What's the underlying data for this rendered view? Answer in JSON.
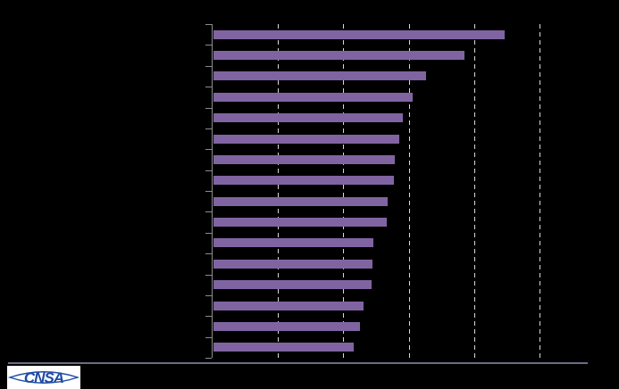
{
  "slide": {
    "background_color": "#000000",
    "visible_text_note": "no chart text labels are rendered in the image"
  },
  "chart_data": {
    "type": "bar",
    "orientation": "horizontal",
    "title": "",
    "categories": [
      "",
      "",
      "",
      "",
      "",
      "",
      "",
      "",
      "",
      "",
      "",
      "",
      "",
      "",
      "",
      ""
    ],
    "category_labels_visible": false,
    "values": [
      4.46,
      3.84,
      3.25,
      3.05,
      2.9,
      2.84,
      2.77,
      2.76,
      2.66,
      2.65,
      2.45,
      2.43,
      2.42,
      2.3,
      2.24,
      2.15
    ],
    "x_axis": {
      "min": 0,
      "max": 5,
      "gridline_interval": 1,
      "tick_labels_visible": false,
      "gridlines": "dashed-vertical"
    },
    "legend": "none",
    "bar_color": "#8064A2",
    "gridline_color": "#D9D9D9",
    "axis_color": "#8C8C8C"
  },
  "footer": {
    "divider_color": "#6B6D86",
    "logo": {
      "text": "CNSA",
      "text_color": "#1E4BA3",
      "background_color": "#FFFFFF",
      "icon": "eye-lens-icon"
    }
  }
}
